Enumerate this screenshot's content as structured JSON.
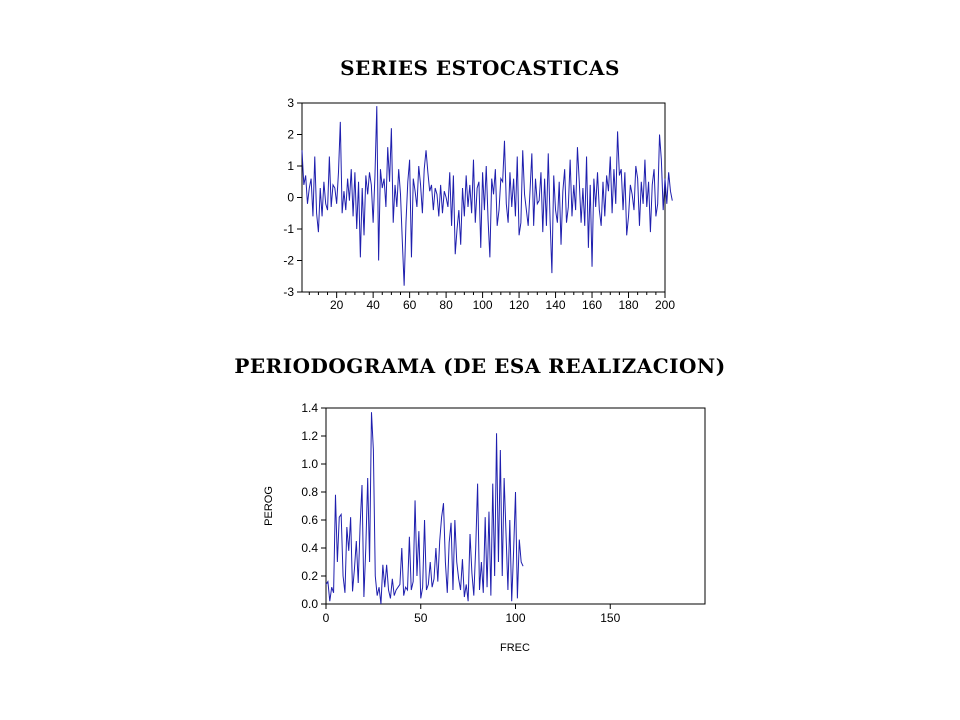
{
  "titles": {
    "series": "SERIES ESTOCASTICAS",
    "periodogram": "PERIODOGRAMA (DE ESA REALIZACION)"
  },
  "colors": {
    "line": "#1f1fae",
    "axis": "#000000"
  },
  "chart_data": [
    {
      "type": "line",
      "title": "",
      "xlabel": "",
      "ylabel": "",
      "xlim": [
        1,
        200
      ],
      "ylim": [
        -3,
        3
      ],
      "x_ticks": [
        "20",
        "40",
        "60",
        "80",
        "100",
        "120",
        "140",
        "160",
        "180",
        "200"
      ],
      "y_ticks": [
        "-3",
        "-2",
        "-1",
        "0",
        "1",
        "2",
        "3"
      ],
      "series": [
        {
          "values": [
            1.5,
            0.4,
            0.7,
            -0.2,
            0.3,
            0.6,
            -0.6,
            1.3,
            -0.5,
            -1.1,
            0.3,
            -0.6,
            0.5,
            -0.2,
            -0.4,
            1.3,
            -0.3,
            0.4,
            0.3,
            -0.2,
            0.8,
            2.4,
            -0.5,
            0.2,
            -0.4,
            0.6,
            -0.1,
            0.9,
            -0.6,
            0.8,
            -1.0,
            0.5,
            -1.9,
            0.3,
            -1.2,
            0.7,
            0.1,
            0.8,
            0.4,
            -0.8,
            0.7,
            2.9,
            -2.0,
            0.9,
            0.3,
            0.6,
            -0.3,
            1.6,
            0.5,
            2.2,
            -0.8,
            0.4,
            -0.3,
            0.9,
            0.1,
            -1.4,
            -2.8,
            -0.8,
            0.5,
            1.2,
            -1.9,
            0.6,
            0.2,
            -0.3,
            1.0,
            0.4,
            -0.5,
            0.9,
            1.5,
            0.8,
            0.2,
            0.4,
            -0.4,
            0.3,
            0.1,
            -0.6,
            0.4,
            -0.5,
            0.2,
            0.0,
            -0.3,
            0.8,
            -0.9,
            0.7,
            -1.8,
            -1.0,
            -0.4,
            -1.5,
            0.3,
            -0.6,
            0.7,
            -0.3,
            0.4,
            -0.5,
            1.2,
            -0.8,
            0.3,
            0.5,
            -1.6,
            0.8,
            -0.4,
            1.0,
            -0.7,
            -1.9,
            0.6,
            0.1,
            0.9,
            -0.9,
            -0.4,
            0.6,
            0.5,
            1.8,
            -0.2,
            -0.8,
            0.8,
            -0.3,
            0.6,
            -0.6,
            1.3,
            -1.2,
            -0.8,
            1.5,
            0.1,
            -0.4,
            -0.9,
            0.2,
            1.4,
            -0.9,
            0.6,
            -0.2,
            -0.1,
            0.8,
            -1.1,
            0.6,
            -0.9,
            1.4,
            -0.7,
            -2.4,
            0.7,
            -0.4,
            -0.8,
            0.5,
            -1.5,
            0.2,
            0.9,
            -0.8,
            -0.3,
            1.2,
            -0.6,
            0.4,
            -0.4,
            1.6,
            0.5,
            -0.8,
            0.3,
            -0.9,
            1.3,
            -1.6,
            0.4,
            -2.2,
            0.6,
            -0.3,
            0.8,
            -0.4,
            -0.9,
            0.5,
            -0.6,
            0.7,
            0.2,
            1.3,
            -0.5,
            0.9,
            -0.2,
            2.1,
            0.7,
            0.9,
            -0.4,
            0.8,
            -1.2,
            -0.6,
            0.4,
            0.1,
            -0.4,
            1.0,
            0.6,
            -0.9,
            0.5,
            -0.2,
            1.2,
            -0.3,
            0.5,
            -1.1,
            0.4,
            0.9,
            -0.6,
            -0.2,
            2.0,
            1.2,
            -0.4,
            0.6,
            -0.2,
            0.8,
            0.2,
            -0.1
          ]
        }
      ]
    },
    {
      "type": "line",
      "title": "",
      "xlabel": "FREC",
      "ylabel": "PEROG",
      "xlim": [
        0,
        200
      ],
      "ylim": [
        0,
        1.4
      ],
      "x_ticks": [
        "0",
        "50",
        "100",
        "150"
      ],
      "y_ticks": [
        "0.0",
        "0.2",
        "0.4",
        "0.6",
        "0.8",
        "1.0",
        "1.2",
        "1.4"
      ],
      "series": [
        {
          "values": [
            0.14,
            0.16,
            0.02,
            0.12,
            0.08,
            0.78,
            0.3,
            0.62,
            0.64,
            0.2,
            0.08,
            0.55,
            0.38,
            0.62,
            0.09,
            0.25,
            0.45,
            0.15,
            0.56,
            0.85,
            0.05,
            0.4,
            0.9,
            0.3,
            1.37,
            1.1,
            0.2,
            0.06,
            0.12,
            0.0,
            0.28,
            0.12,
            0.28,
            0.1,
            0.04,
            0.18,
            0.06,
            0.1,
            0.12,
            0.14,
            0.4,
            0.06,
            0.12,
            0.1,
            0.48,
            0.1,
            0.16,
            0.74,
            0.2,
            0.52,
            0.04,
            0.12,
            0.6,
            0.1,
            0.14,
            0.3,
            0.12,
            0.18,
            0.4,
            0.16,
            0.45,
            0.62,
            0.72,
            0.3,
            0.08,
            0.44,
            0.58,
            0.1,
            0.6,
            0.3,
            0.18,
            0.1,
            0.32,
            0.05,
            0.14,
            0.02,
            0.5,
            0.22,
            0.06,
            0.4,
            0.86,
            0.1,
            0.3,
            0.08,
            0.62,
            0.12,
            0.66,
            0.06,
            0.86,
            0.2,
            1.22,
            0.3,
            1.1,
            0.2,
            0.9,
            0.5,
            0.1,
            0.6,
            0.02,
            0.38,
            0.8,
            0.04,
            0.46,
            0.3,
            0.27
          ]
        }
      ]
    }
  ]
}
